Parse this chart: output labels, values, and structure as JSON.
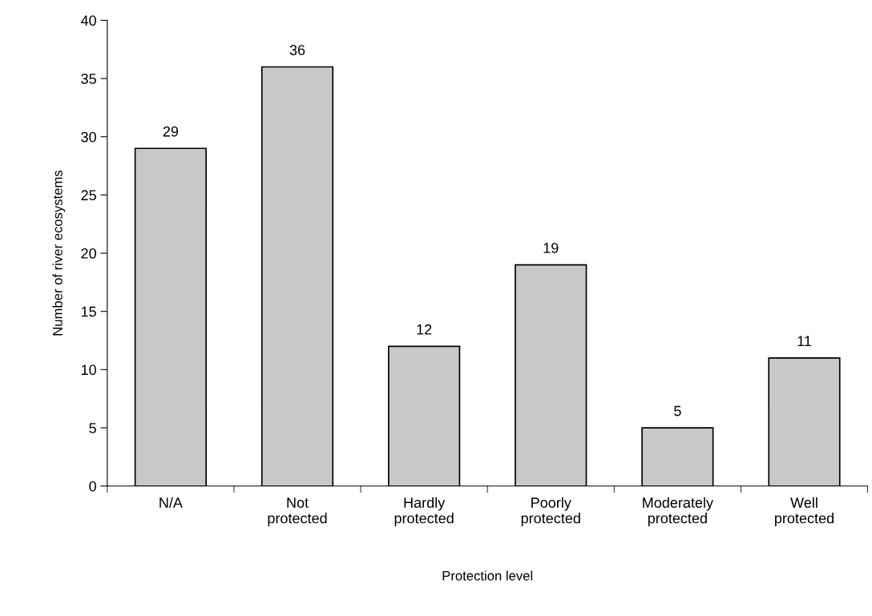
{
  "chart_data": {
    "type": "bar",
    "xlabel": "Protection level",
    "ylabel": "Number of river ecosystems",
    "categories": [
      "N/A",
      "Not\nprotected",
      "Hardly\nprotected",
      "Poorly\nprotected",
      "Moderately\nprotected",
      "Well\nprotected"
    ],
    "values": [
      29,
      36,
      12,
      19,
      5,
      11
    ],
    "color": "#c8c8c8",
    "ylim": [
      0,
      40
    ],
    "yticks": [
      0,
      5,
      10,
      15,
      20,
      25,
      30,
      35,
      40
    ],
    "grid": false,
    "legend": false,
    "data_labels": true
  }
}
